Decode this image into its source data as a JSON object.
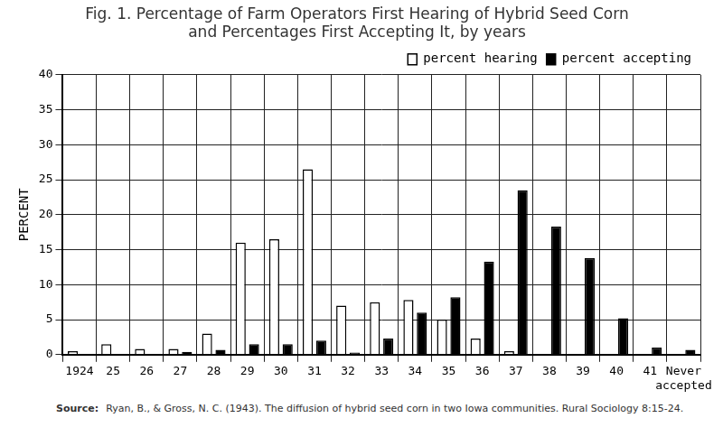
{
  "chart_data": {
    "type": "bar",
    "title": [
      "Fig. 1. Percentage of Farm Operators First Hearing of Hybrid Seed Corn",
      "and Percentages First Accepting It, by years"
    ],
    "y_label": "PERCENT",
    "categories": [
      "1924",
      "25",
      "26",
      "27",
      "28",
      "29",
      "30",
      "31",
      "32",
      "33",
      "34",
      "35",
      "36",
      "37",
      "38",
      "39",
      "40",
      "41",
      "Never accepted"
    ],
    "series": [
      {
        "name": "percent hearing",
        "color": "#ffffff",
        "values": [
          0.5,
          1.5,
          0.8,
          0.8,
          3,
          16,
          16.5,
          26.5,
          7,
          7.5,
          7.8,
          5,
          2.3,
          0.5,
          null,
          null,
          null,
          null,
          null
        ]
      },
      {
        "name": "percent accepting",
        "color": "#000000",
        "values": [
          null,
          null,
          null,
          0.4,
          0.7,
          1.5,
          1.5,
          2,
          0.3,
          2.3,
          6,
          8.2,
          13.3,
          23.5,
          18.3,
          13.8,
          5.2,
          1,
          0.7
        ]
      }
    ],
    "ylim": [
      0,
      40
    ],
    "yticks": [
      0,
      5,
      10,
      15,
      20,
      25,
      30,
      35,
      40
    ],
    "grid": true,
    "legend": "upper right",
    "source_label": "Source:",
    "source": "Ryan, B., & Gross, N. C. (1943). The diffusion of hybrid seed corn in two Iowa communities. Rural Sociology 8:15-24."
  }
}
